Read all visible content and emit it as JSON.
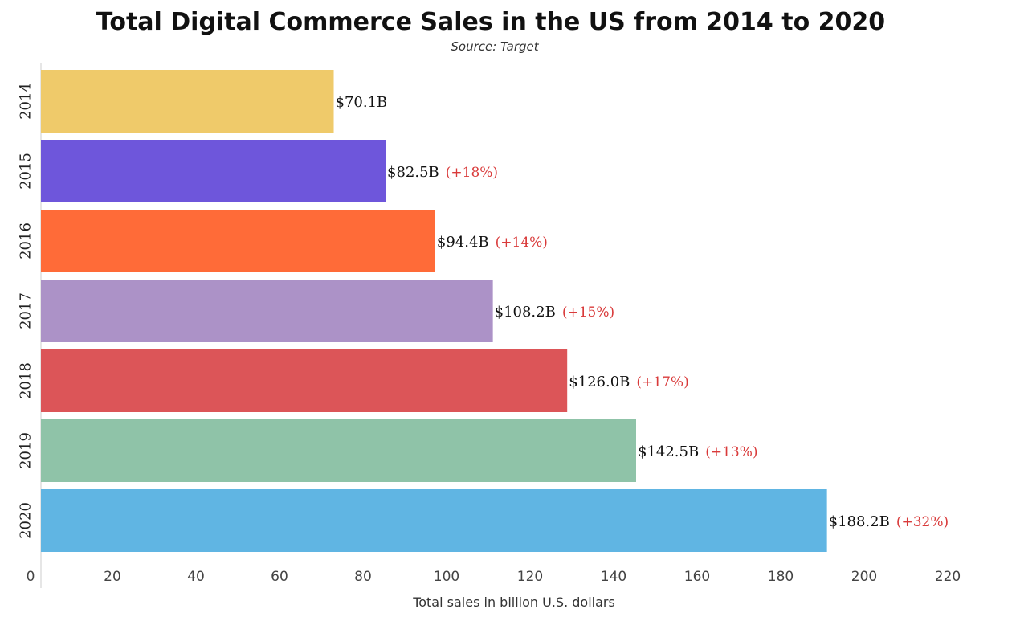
{
  "chart_data": {
    "type": "bar",
    "orientation": "horizontal",
    "title": "Total Digital Commerce Sales in the US from 2014 to 2020",
    "subtitle": "Source: Target",
    "xlabel": "Total sales in billion U.S. dollars",
    "ylabel": "",
    "categories": [
      "2014",
      "2015",
      "2016",
      "2017",
      "2018",
      "2019",
      "2020"
    ],
    "values": [
      70.1,
      82.5,
      94.4,
      108.2,
      126.0,
      142.5,
      188.2
    ],
    "value_labels": [
      "$70.1B",
      "$82.5B",
      "$94.4B",
      "$108.2B",
      "$126.0B",
      "$142.5B",
      "$188.2B"
    ],
    "change_labels": [
      "",
      "(+18%)",
      "(+14%)",
      "(+15%)",
      "(+17%)",
      "(+13%)",
      "(+32%)"
    ],
    "xlim": [
      0,
      220
    ],
    "xticks": [
      0,
      20,
      40,
      60,
      80,
      100,
      120,
      140,
      160,
      180,
      200,
      220
    ],
    "grid": false,
    "legend": "none",
    "colors": [
      "#EFCA6A",
      "#6E56DB",
      "#FF6B38",
      "#AC92C7",
      "#DC5558",
      "#8FC3A8",
      "#60B5E3"
    ],
    "change_label_color": "#D93A3A"
  }
}
